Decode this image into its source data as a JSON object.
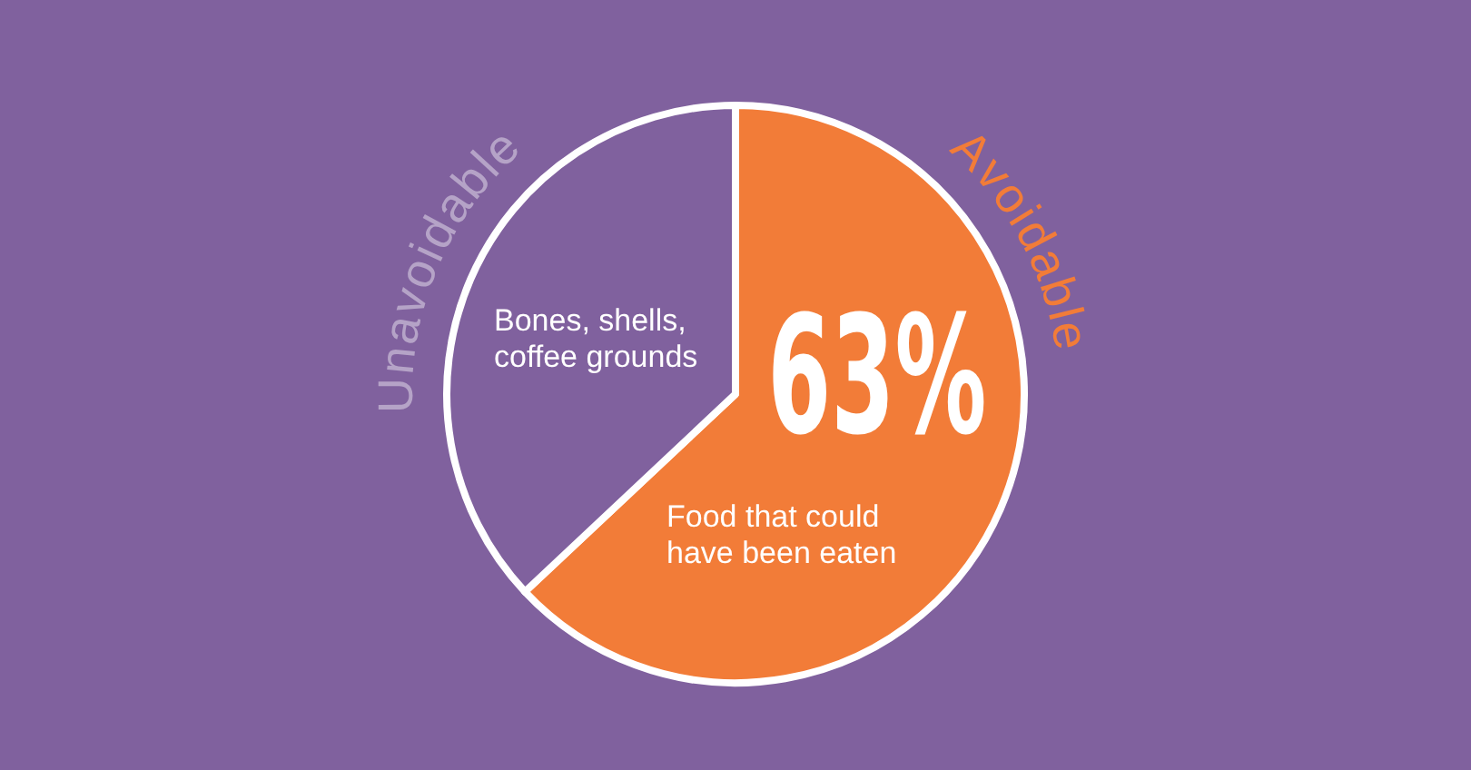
{
  "chart_data": {
    "type": "pie",
    "categories": [
      "Avoidable",
      "Unavoidable"
    ],
    "values": [
      63,
      37
    ],
    "colors": [
      "#f27c38",
      "#80619e"
    ],
    "value_labels": [
      "63%",
      null
    ],
    "annotations": [
      "Bones, shells, coffee grounds",
      "Food that could have been eaten"
    ]
  }
}
